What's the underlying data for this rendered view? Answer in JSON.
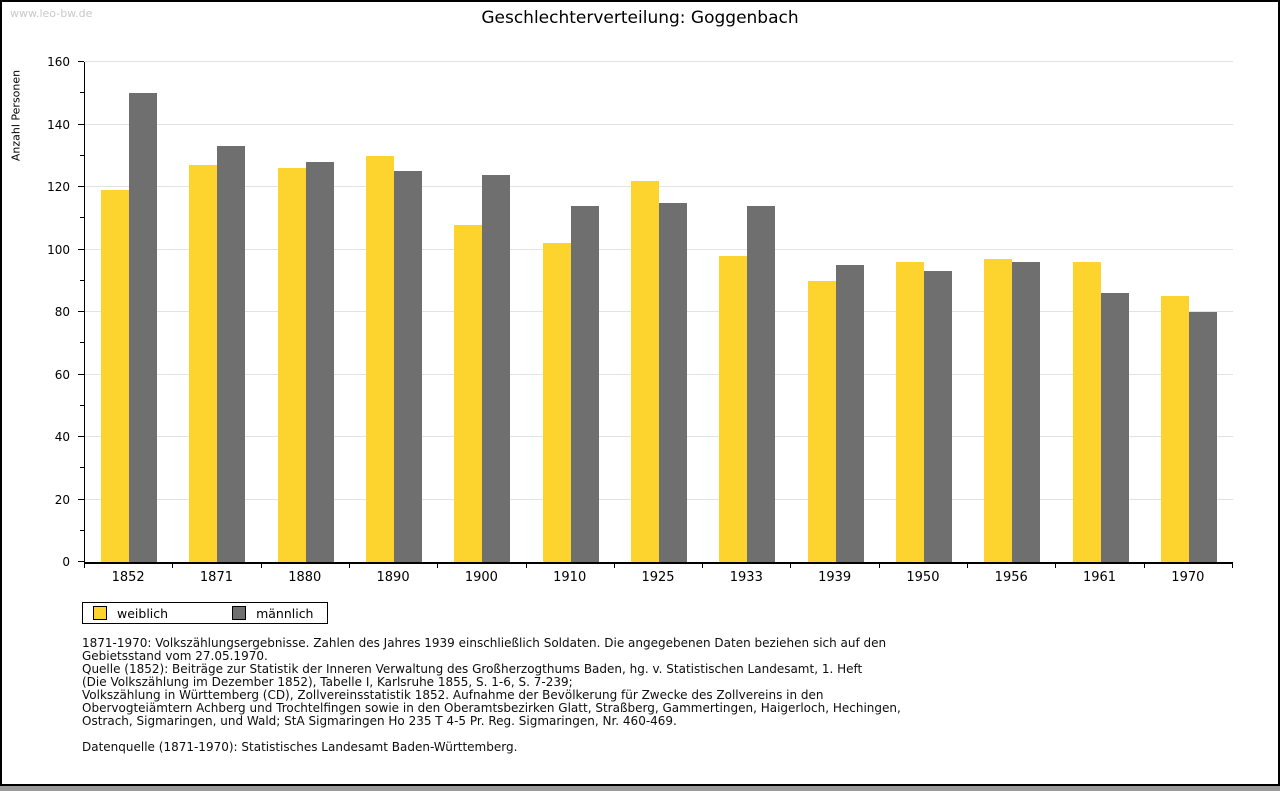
{
  "watermark": "www.leo-bw.de",
  "chart_data": {
    "type": "bar",
    "title": "Geschlechterverteilung: Goggenbach",
    "ylabel": "Anzahl Personen",
    "xlabel": "",
    "categories": [
      "1852",
      "1871",
      "1880",
      "1890",
      "1900",
      "1910",
      "1925",
      "1933",
      "1939",
      "1950",
      "1956",
      "1961",
      "1970"
    ],
    "series": [
      {
        "name": "weiblich",
        "color": "#FCD42D",
        "values": [
          119,
          127,
          126,
          130,
          108,
          102,
          122,
          98,
          90,
          96,
          97,
          96,
          85
        ]
      },
      {
        "name": "männlich",
        "color": "#6F6F6F",
        "values": [
          150,
          133,
          128,
          125,
          124,
          114,
          115,
          114,
          95,
          93,
          96,
          86,
          80
        ]
      }
    ],
    "ylim": [
      0,
      160
    ],
    "yticks": [
      0,
      20,
      40,
      60,
      80,
      100,
      120,
      140,
      160
    ],
    "minor_tick_step": 10,
    "grid": true,
    "gridline_color": "#e3e3e3",
    "legend_position": "bottom-left"
  },
  "legend": {
    "weiblich": "weiblich",
    "maennlich": "männlich"
  },
  "footnotes": {
    "lines": [
      "1871-1970: Volkszählungsergebnisse. Zahlen des Jahres 1939 einschließlich Soldaten. Die angegebenen Daten beziehen sich auf den",
      "Gebietsstand vom 27.05.1970.",
      "Quelle (1852): Beiträge zur Statistik der Inneren Verwaltung des Großherzogthums Baden, hg. v. Statistischen Landesamt, 1. Heft",
      "(Die Volkszählung im Dezember 1852), Tabelle I, Karlsruhe 1855, S. 1-6, S. 7-239;",
      "Volkszählung in Württemberg (CD), Zollvereinsstatistik 1852. Aufnahme der Bevölkerung für Zwecke des Zollvereins in den",
      "Obervogteiämtern Achberg und Trochtelfingen sowie in den Oberamtsbezirken Glatt, Straßberg, Gammertingen, Haigerloch, Hechingen,",
      "Ostrach, Sigmaringen, und Wald; StA Sigmaringen Ho 235 T 4-5 Pr. Reg. Sigmaringen, Nr. 460-469."
    ],
    "datenquelle": "Datenquelle (1871-1970): Statistisches Landesamt Baden-Württemberg."
  }
}
